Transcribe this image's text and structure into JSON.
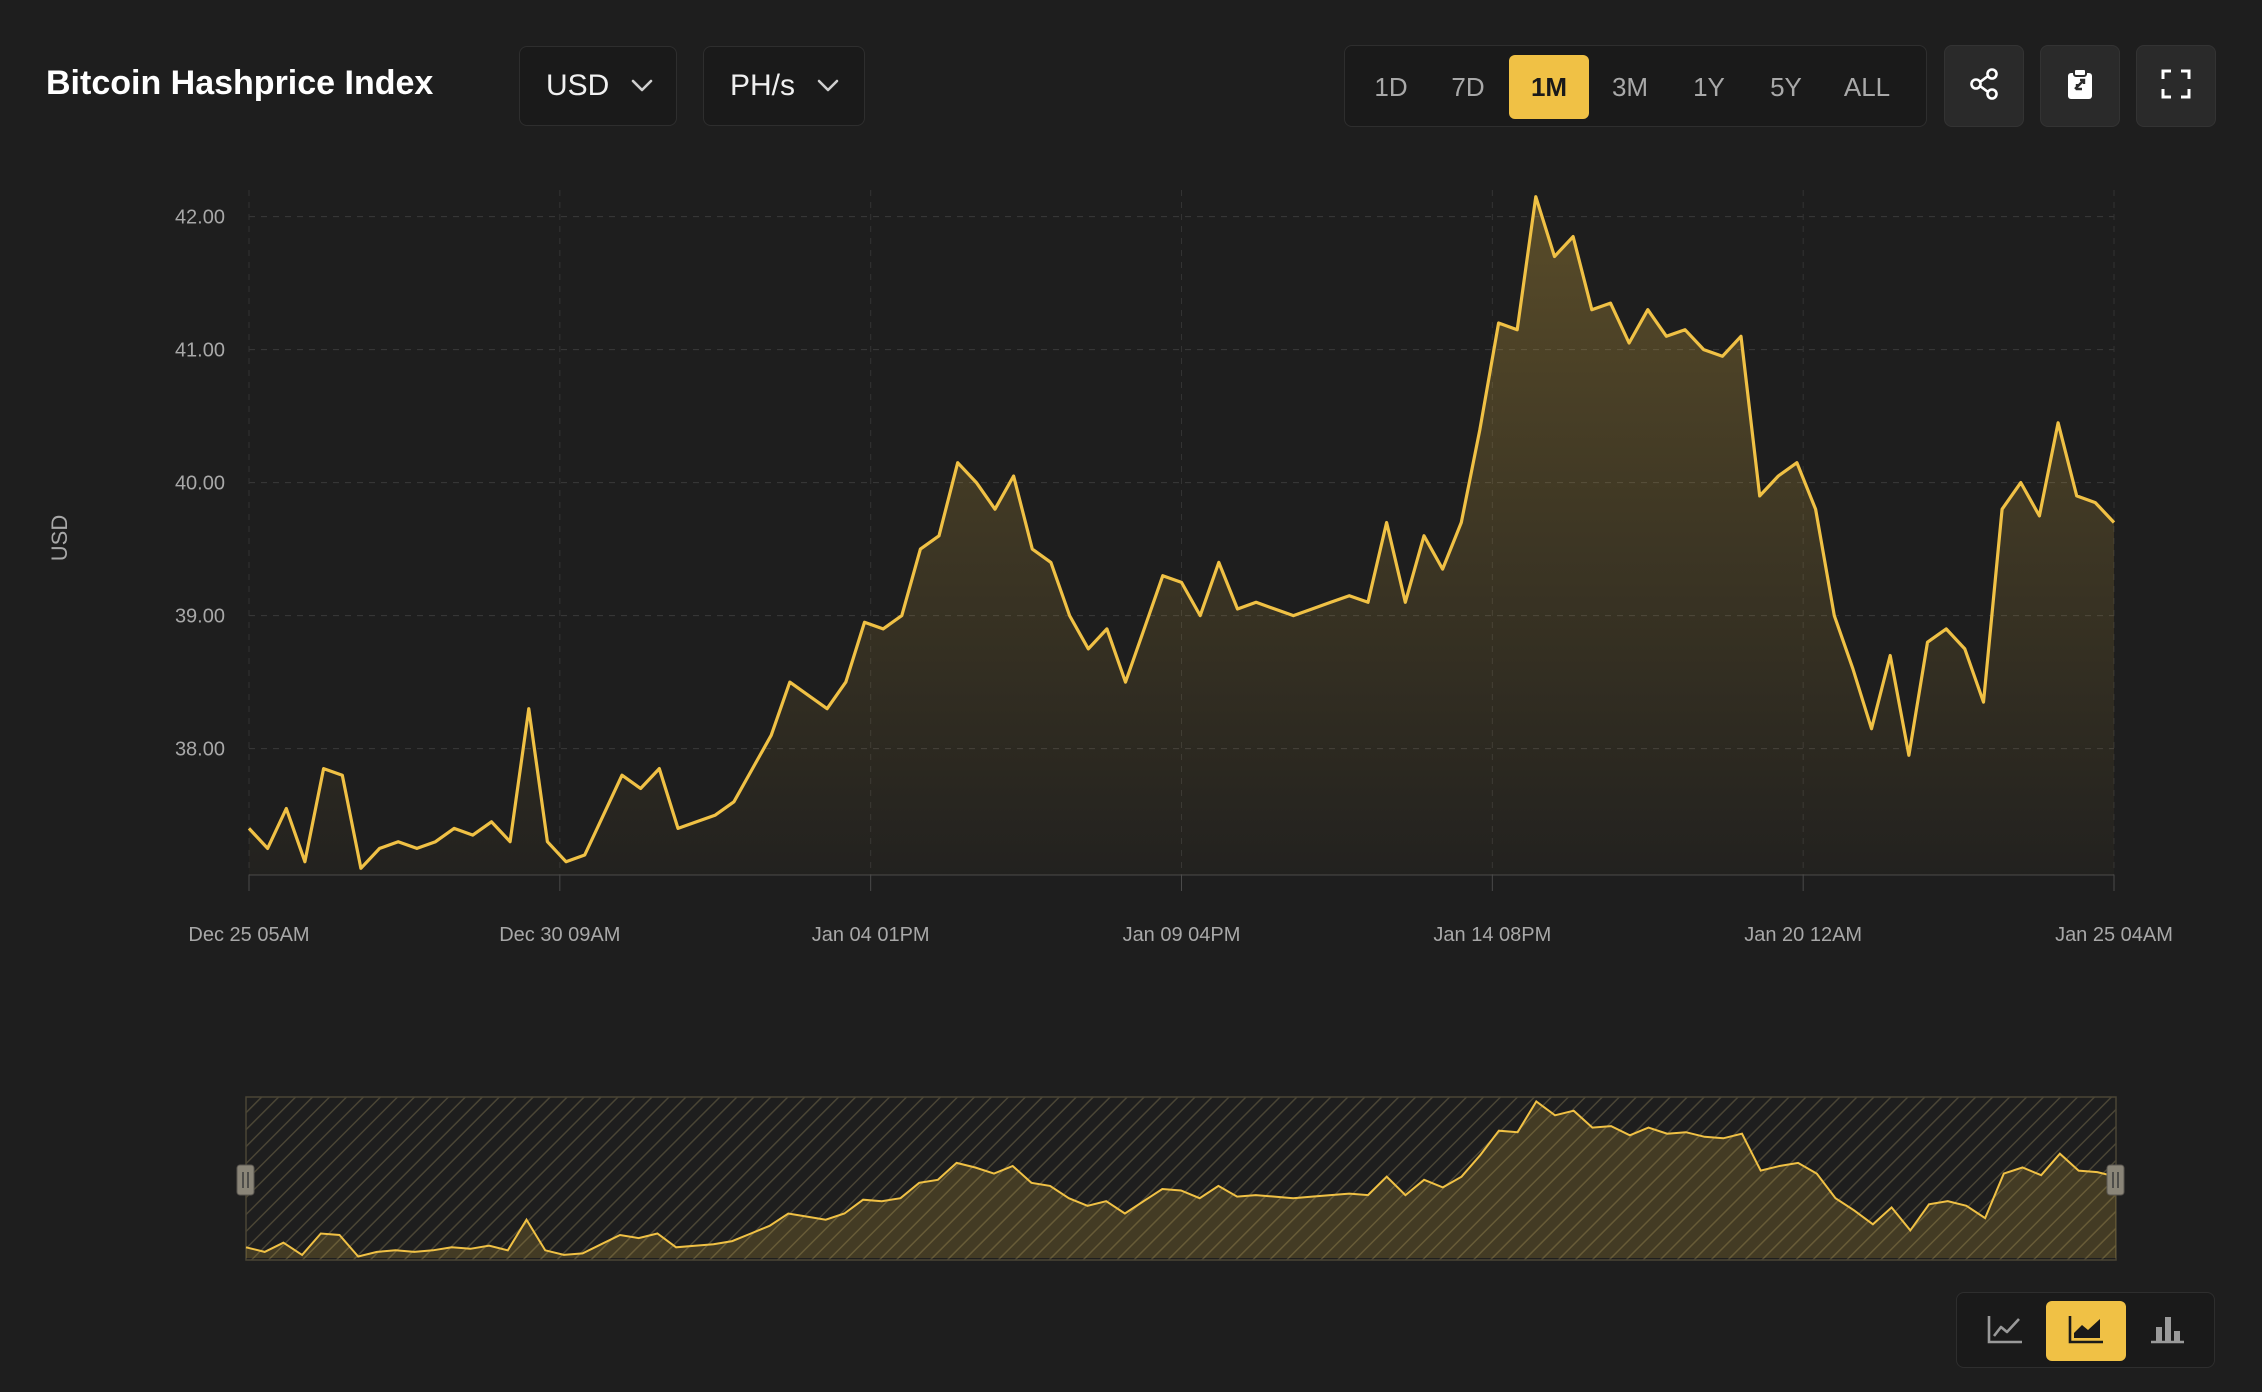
{
  "header": {
    "title": "Bitcoin Hashprice Index",
    "currency": "USD",
    "unit": "PH/s",
    "ranges": [
      "1D",
      "7D",
      "1M",
      "3M",
      "1Y",
      "5Y",
      "ALL"
    ],
    "active_range": "1M",
    "icons": [
      "share-icon",
      "clipboard-icon",
      "fullscreen-icon"
    ]
  },
  "chart_type_buttons": {
    "icons": [
      "line-chart-icon",
      "area-chart-icon",
      "bar-chart-icon"
    ],
    "active": "area-chart-icon"
  },
  "colors": {
    "accent": "#f0c145",
    "background": "#1e1e1e",
    "grid": "#3a3a3a",
    "axis_text": "#a8a8a8"
  },
  "chart_data": {
    "type": "area",
    "title": "",
    "xlabel": "",
    "ylabel": "USD",
    "ylim": [
      37.05,
      42.2
    ],
    "yticks": [
      38.0,
      39.0,
      40.0,
      41.0,
      42.0
    ],
    "ytick_labels": [
      "38.00",
      "39.00",
      "40.00",
      "41.00",
      "42.00"
    ],
    "xtick_labels": [
      "Dec 25 05AM",
      "Dec 30 09AM",
      "Jan 04 01PM",
      "Jan 09 04PM",
      "Jan 14 08PM",
      "Jan 20 12AM",
      "Jan 25 04AM"
    ],
    "grid": true,
    "legend": "none",
    "x_start": "Dec 25 05AM",
    "x_end": "Jan 25 04AM",
    "x_step_hours": 12,
    "series": [
      {
        "values": [
          37.4,
          37.25,
          37.55,
          37.15,
          37.85,
          37.8,
          37.1,
          37.25,
          37.3,
          37.25,
          37.3,
          37.4,
          37.35,
          37.45,
          37.3,
          38.3,
          37.3,
          37.15,
          37.2,
          37.5,
          37.8,
          37.7,
          37.85,
          37.4,
          37.45,
          37.5,
          37.6,
          37.85,
          38.1,
          38.5,
          38.4,
          38.3,
          38.5,
          38.95,
          38.9,
          39.0,
          39.5,
          39.6,
          40.15,
          40.0,
          39.8,
          40.05,
          39.5,
          39.4,
          39.0,
          38.75,
          38.9,
          38.5,
          38.9,
          39.3,
          39.25,
          39.0,
          39.4,
          39.05,
          39.1,
          39.05,
          39.0,
          39.05,
          39.1,
          39.15,
          39.1,
          39.7,
          39.1,
          39.6,
          39.35,
          39.7,
          40.4,
          41.2,
          41.15,
          42.15,
          41.7,
          41.85,
          41.3,
          41.35,
          41.05,
          41.3,
          41.1,
          41.15,
          41.0,
          40.95,
          41.1,
          39.9,
          40.05,
          40.15,
          39.8,
          39.0,
          38.6,
          38.15,
          38.7,
          37.95,
          38.8,
          38.9,
          38.75,
          38.35,
          39.8,
          40.0,
          39.75,
          40.45,
          39.9,
          39.85,
          39.7
        ]
      }
    ]
  }
}
